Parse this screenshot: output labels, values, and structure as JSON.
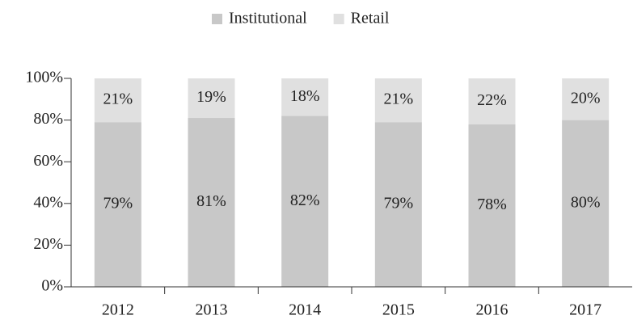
{
  "chart_data": {
    "type": "bar",
    "stacked": true,
    "categories": [
      "2012",
      "2013",
      "2014",
      "2015",
      "2016",
      "2017"
    ],
    "series": [
      {
        "name": "Institutional",
        "color": "#c8c8c8",
        "values": [
          79,
          81,
          82,
          79,
          78,
          80
        ],
        "value_labels": [
          "79%",
          "81%",
          "82%",
          "79%",
          "78%",
          "80%"
        ]
      },
      {
        "name": "Retail",
        "color": "#e0e0e0",
        "values": [
          21,
          19,
          18,
          21,
          22,
          20
        ],
        "value_labels": [
          "21%",
          "19%",
          "18%",
          "21%",
          "22%",
          "20%"
        ]
      }
    ],
    "ylim": [
      0,
      100
    ],
    "yticks": [
      {
        "value": 0,
        "label": "0%"
      },
      {
        "value": 20,
        "label": "20%"
      },
      {
        "value": 40,
        "label": "40%"
      },
      {
        "value": 60,
        "label": "60%"
      },
      {
        "value": 80,
        "label": "80%"
      },
      {
        "value": 100,
        "label": "100%"
      }
    ],
    "legend": "top",
    "grid": false
  }
}
